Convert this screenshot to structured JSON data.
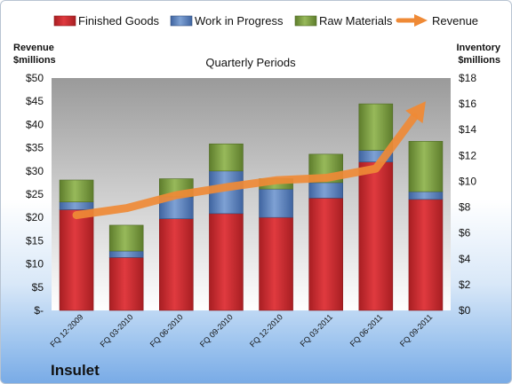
{
  "brand": "Insulet",
  "chart_data": {
    "type": "bar",
    "stacked": true,
    "title": "Quarterly Periods",
    "left_axis_title": [
      "Revenue",
      "$millions"
    ],
    "right_axis_title": [
      "Inventory",
      "$millions"
    ],
    "legend_position": "top",
    "categories": [
      "FQ 12-2009",
      "FQ 03-2010",
      "FQ 06-2010",
      "FQ 09-2010",
      "FQ 12-2010",
      "FQ 03-2011",
      "FQ 06-2011",
      "FQ 09-2011"
    ],
    "series": [
      {
        "name": "Finished Goods",
        "axis": "right",
        "color": "#d42a30",
        "values": [
          7.8,
          4.1,
          7.1,
          7.5,
          7.2,
          8.7,
          11.5,
          8.6
        ]
      },
      {
        "name": "Work in Progress",
        "axis": "right",
        "color": "#5b83be",
        "values": [
          0.6,
          0.5,
          1.7,
          3.3,
          2.2,
          1.2,
          0.9,
          0.6
        ]
      },
      {
        "name": "Raw Materials",
        "axis": "right",
        "color": "#7fa244",
        "values": [
          1.7,
          2.0,
          1.4,
          2.1,
          0.8,
          2.2,
          3.6,
          3.9
        ]
      },
      {
        "name": "Revenue",
        "axis": "left",
        "color": "#ef8a36",
        "type": "arrow-line",
        "values": [
          20.5,
          22,
          24.8,
          26.5,
          28,
          28.5,
          30.5,
          45
        ]
      }
    ],
    "left_axis": {
      "min": 0,
      "max": 50,
      "step": 5,
      "tick_labels": [
        "$-",
        "$5",
        "$10",
        "$15",
        "$20",
        "$25",
        "$30",
        "$35",
        "$40",
        "$45",
        "$50"
      ]
    },
    "right_axis": {
      "min": 0,
      "max": 18,
      "step": 2,
      "tick_labels": [
        "$0",
        "$2",
        "$4",
        "$6",
        "$8",
        "$10",
        "$12",
        "$14",
        "$16",
        "$18"
      ]
    },
    "grid": false
  }
}
